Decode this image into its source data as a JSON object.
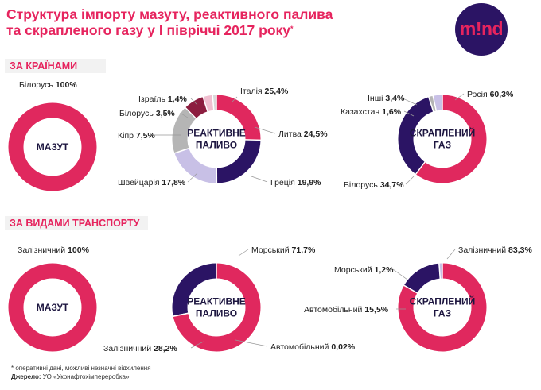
{
  "header": {
    "title_line1": "Структура імпорту мазуту, реактивного палива",
    "title_line2": "та скрапленого газу у І півріччі 2017 року",
    "title_mark": "*",
    "logo_text": "m!nd"
  },
  "sections": {
    "by_country": "ЗА КРАЇНАМИ",
    "by_transport": "ЗА ВИДАМИ ТРАНСПОРТУ"
  },
  "colors": {
    "pink": "#e0285e",
    "navy": "#2b1464",
    "lavender": "#c8c0e6",
    "gray": "#b5b5b5",
    "dark_red": "#8c1d3f",
    "light_pink": "#f0bfd0",
    "light_gray": "#d9d9d9"
  },
  "chart_data": [
    {
      "type": "pie",
      "group": "by_country",
      "center_label": [
        "МАЗУТ"
      ],
      "slices": [
        {
          "name": "Білорусь",
          "value": 100,
          "label": "100%",
          "color": "#e0285e"
        }
      ]
    },
    {
      "type": "pie",
      "group": "by_country",
      "center_label": [
        "РЕАКТИВНЕ",
        "ПАЛИВО"
      ],
      "slices": [
        {
          "name": "Італія",
          "value": 25.4,
          "label": "25,4%",
          "color": "#e0285e"
        },
        {
          "name": "Литва",
          "value": 24.5,
          "label": "24,5%",
          "color": "#2b1464"
        },
        {
          "name": "Греція",
          "value": 19.9,
          "label": "19,9%",
          "color": "#c8c0e6"
        },
        {
          "name": "Швейцарія",
          "value": 17.8,
          "label": "17,8%",
          "color": "#b5b5b5"
        },
        {
          "name": "Кіпр",
          "value": 7.5,
          "label": "7,5%",
          "color": "#8c1d3f"
        },
        {
          "name": "Білорусь",
          "value": 3.5,
          "label": "3,5%",
          "color": "#f0bfd0"
        },
        {
          "name": "Ізраїль",
          "value": 1.4,
          "label": "1,4%",
          "color": "#d9d9d9"
        }
      ]
    },
    {
      "type": "pie",
      "group": "by_country",
      "center_label": [
        "СКРАПЛЕНИЙ",
        "ГАЗ"
      ],
      "slices": [
        {
          "name": "Росія",
          "value": 60.3,
          "label": "60,3%",
          "color": "#e0285e"
        },
        {
          "name": "Білорусь",
          "value": 34.7,
          "label": "34,7%",
          "color": "#2b1464"
        },
        {
          "name": "Казахстан",
          "value": 1.6,
          "label": "1,6%",
          "color": "#b5b5b5"
        },
        {
          "name": "Інші",
          "value": 3.4,
          "label": "3,4%",
          "color": "#c8c0e6"
        }
      ]
    },
    {
      "type": "pie",
      "group": "by_transport",
      "center_label": [
        "МАЗУТ"
      ],
      "slices": [
        {
          "name": "Залізничний",
          "value": 100,
          "label": "100%",
          "color": "#e0285e"
        }
      ]
    },
    {
      "type": "pie",
      "group": "by_transport",
      "center_label": [
        "РЕАКТИВНЕ",
        "ПАЛИВО"
      ],
      "slices": [
        {
          "name": "Морський",
          "value": 71.7,
          "label": "71,7%",
          "color": "#e0285e"
        },
        {
          "name": "Автомобільний",
          "value": 0.02,
          "label": "0,02%",
          "color": "#c8c0e6"
        },
        {
          "name": "Залізничний",
          "value": 28.2,
          "label": "28,2%",
          "color": "#2b1464"
        }
      ]
    },
    {
      "type": "pie",
      "group": "by_transport",
      "center_label": [
        "СКРАПЛЕНИЙ",
        "ГАЗ"
      ],
      "slices": [
        {
          "name": "Залізничний",
          "value": 83.3,
          "label": "83,3%",
          "color": "#e0285e"
        },
        {
          "name": "Автомобільний",
          "value": 15.5,
          "label": "15,5%",
          "color": "#2b1464"
        },
        {
          "name": "Морський",
          "value": 1.2,
          "label": "1,2%",
          "color": "#c8c0e6"
        }
      ]
    }
  ],
  "footer": {
    "note": "* оперативні дані, можливі незначні відхилення",
    "source_label": "Джерело:",
    "source_text": " УО «Укрнафтохімпереробка»"
  }
}
